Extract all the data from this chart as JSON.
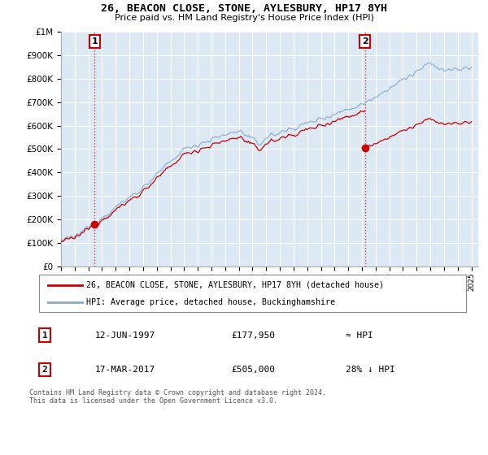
{
  "title": "26, BEACON CLOSE, STONE, AYLESBURY, HP17 8YH",
  "subtitle": "Price paid vs. HM Land Registry's House Price Index (HPI)",
  "legend_line1": "26, BEACON CLOSE, STONE, AYLESBURY, HP17 8YH (detached house)",
  "legend_line2": "HPI: Average price, detached house, Buckinghamshire",
  "sale1_date": "12-JUN-1997",
  "sale1_price": "£177,950",
  "sale1_hpi": "≈ HPI",
  "sale2_date": "17-MAR-2017",
  "sale2_price": "£505,000",
  "sale2_hpi": "28% ↓ HPI",
  "footer": "Contains HM Land Registry data © Crown copyright and database right 2024.\nThis data is licensed under the Open Government Licence v3.0.",
  "sale_line_color": "#cc0000",
  "hpi_line_color": "#88aacc",
  "plot_bg_color": "#dce9f5",
  "grid_color": "#ffffff",
  "ylim": [
    0,
    1000000
  ],
  "yticks": [
    0,
    100000,
    200000,
    300000,
    400000,
    500000,
    600000,
    700000,
    800000,
    900000,
    1000000
  ],
  "sale1_year": 1997.45,
  "sale1_value": 177950,
  "sale2_year": 2017.21,
  "sale2_value": 505000,
  "xmin": 1995,
  "xmax": 2025.5
}
